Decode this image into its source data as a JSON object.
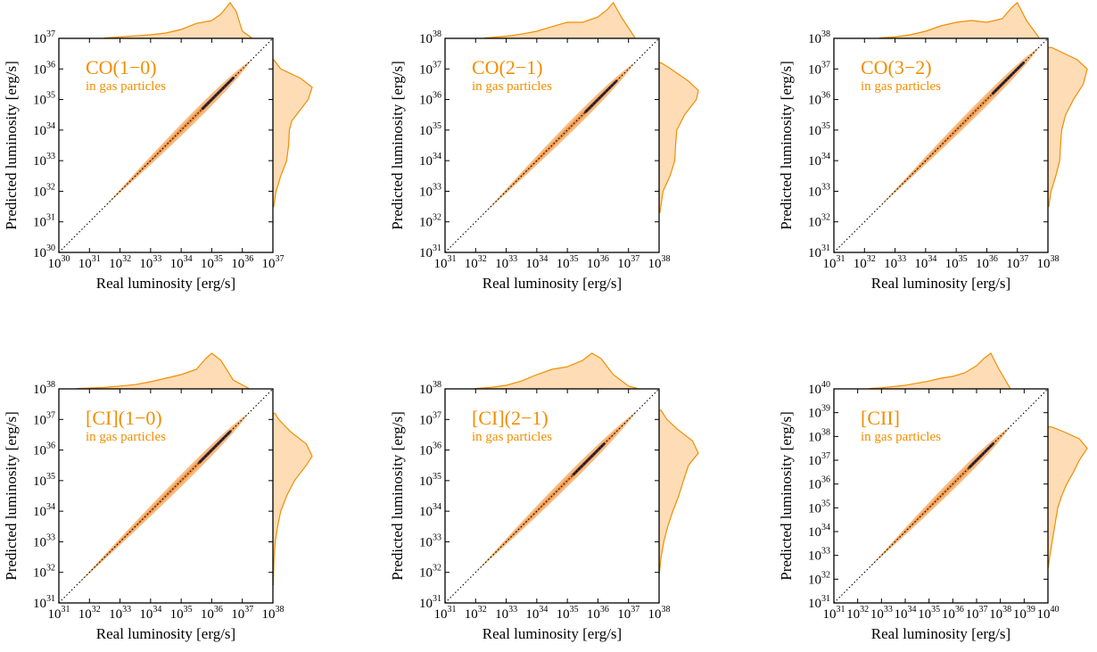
{
  "figure": {
    "accent_color": "#f28e00",
    "fill_color": "#fddcb6",
    "density_dark": "#1a1a3a",
    "diagonal_style": "black-dotted"
  },
  "chart_data": [
    {
      "type": "scatter",
      "title": "CO(1−0)",
      "subtitle": "in gas particles",
      "xlabel": "Real luminosity [erg/s]",
      "ylabel": "Predicted luminosity [erg/s]",
      "log_scale": true,
      "xlim_exp": [
        30,
        37
      ],
      "ylim_exp": [
        30,
        37
      ],
      "x_ticks": [
        {
          "base": "10",
          "exp": "30"
        },
        {
          "base": "10",
          "exp": "31"
        },
        {
          "base": "10",
          "exp": "32"
        },
        {
          "base": "10",
          "exp": "33"
        },
        {
          "base": "10",
          "exp": "34"
        },
        {
          "base": "10",
          "exp": "35"
        },
        {
          "base": "10",
          "exp": "36"
        },
        {
          "base": "10",
          "exp": "37"
        }
      ],
      "y_ticks": [
        {
          "base": "10",
          "exp": "30"
        },
        {
          "base": "10",
          "exp": "31"
        },
        {
          "base": "10",
          "exp": "32"
        },
        {
          "base": "10",
          "exp": "33"
        },
        {
          "base": "10",
          "exp": "34"
        },
        {
          "base": "10",
          "exp": "35"
        },
        {
          "base": "10",
          "exp": "36"
        },
        {
          "base": "10",
          "exp": "37"
        }
      ],
      "data_range_exp": [
        31.5,
        36.3
      ],
      "density_peak_exp": 35.3,
      "top_marginal": [
        [
          31.5,
          0.01
        ],
        [
          32.0,
          0.04
        ],
        [
          32.5,
          0.07
        ],
        [
          33.0,
          0.1
        ],
        [
          33.5,
          0.15
        ],
        [
          34.0,
          0.25
        ],
        [
          34.5,
          0.42
        ],
        [
          35.0,
          0.5
        ],
        [
          35.3,
          0.68
        ],
        [
          35.6,
          1.0
        ],
        [
          35.8,
          0.75
        ],
        [
          36.0,
          0.2
        ],
        [
          36.3,
          0.02
        ]
      ],
      "right_marginal": [
        [
          31.5,
          0.02
        ],
        [
          32.0,
          0.08
        ],
        [
          32.5,
          0.2
        ],
        [
          33.0,
          0.35
        ],
        [
          33.5,
          0.4
        ],
        [
          34.0,
          0.42
        ],
        [
          34.3,
          0.48
        ],
        [
          34.7,
          0.72
        ],
        [
          35.0,
          0.9
        ],
        [
          35.4,
          1.0
        ],
        [
          35.7,
          0.7
        ],
        [
          36.0,
          0.2
        ],
        [
          36.3,
          0.02
        ]
      ]
    },
    {
      "type": "scatter",
      "title": "CO(2−1)",
      "subtitle": "in gas particles",
      "xlabel": "Real luminosity [erg/s]",
      "ylabel": "Predicted luminosity [erg/s]",
      "log_scale": true,
      "xlim_exp": [
        31,
        38
      ],
      "ylim_exp": [
        31,
        38
      ],
      "x_ticks": [
        {
          "base": "10",
          "exp": "31"
        },
        {
          "base": "10",
          "exp": "32"
        },
        {
          "base": "10",
          "exp": "33"
        },
        {
          "base": "10",
          "exp": "34"
        },
        {
          "base": "10",
          "exp": "35"
        },
        {
          "base": "10",
          "exp": "36"
        },
        {
          "base": "10",
          "exp": "37"
        },
        {
          "base": "10",
          "exp": "38"
        }
      ],
      "y_ticks": [
        {
          "base": "10",
          "exp": "31"
        },
        {
          "base": "10",
          "exp": "32"
        },
        {
          "base": "10",
          "exp": "33"
        },
        {
          "base": "10",
          "exp": "34"
        },
        {
          "base": "10",
          "exp": "35"
        },
        {
          "base": "10",
          "exp": "36"
        },
        {
          "base": "10",
          "exp": "37"
        },
        {
          "base": "10",
          "exp": "38"
        }
      ],
      "data_range_exp": [
        32.3,
        37.2
      ],
      "density_peak_exp": 36.2,
      "top_marginal": [
        [
          32.3,
          0.01
        ],
        [
          33.0,
          0.06
        ],
        [
          33.5,
          0.12
        ],
        [
          34.0,
          0.2
        ],
        [
          34.5,
          0.33
        ],
        [
          35.0,
          0.45
        ],
        [
          35.5,
          0.45
        ],
        [
          36.0,
          0.6
        ],
        [
          36.3,
          0.8
        ],
        [
          36.5,
          1.0
        ],
        [
          36.8,
          0.55
        ],
        [
          37.2,
          0.03
        ]
      ],
      "right_marginal": [
        [
          32.3,
          0.02
        ],
        [
          33.0,
          0.1
        ],
        [
          33.5,
          0.28
        ],
        [
          34.0,
          0.4
        ],
        [
          34.5,
          0.42
        ],
        [
          35.0,
          0.45
        ],
        [
          35.5,
          0.65
        ],
        [
          36.0,
          0.95
        ],
        [
          36.3,
          1.0
        ],
        [
          36.6,
          0.75
        ],
        [
          37.0,
          0.3
        ],
        [
          37.2,
          0.05
        ]
      ]
    },
    {
      "type": "scatter",
      "title": "CO(3−2)",
      "subtitle": "in gas particles",
      "xlabel": "Real luminosity [erg/s]",
      "ylabel": "Predicted luminosity [erg/s]",
      "log_scale": true,
      "xlim_exp": [
        31,
        38
      ],
      "ylim_exp": [
        31,
        38
      ],
      "x_ticks": [
        {
          "base": "10",
          "exp": "31"
        },
        {
          "base": "10",
          "exp": "32"
        },
        {
          "base": "10",
          "exp": "33"
        },
        {
          "base": "10",
          "exp": "34"
        },
        {
          "base": "10",
          "exp": "35"
        },
        {
          "base": "10",
          "exp": "36"
        },
        {
          "base": "10",
          "exp": "37"
        },
        {
          "base": "10",
          "exp": "38"
        }
      ],
      "y_ticks": [
        {
          "base": "10",
          "exp": "31"
        },
        {
          "base": "10",
          "exp": "32"
        },
        {
          "base": "10",
          "exp": "33"
        },
        {
          "base": "10",
          "exp": "34"
        },
        {
          "base": "10",
          "exp": "35"
        },
        {
          "base": "10",
          "exp": "36"
        },
        {
          "base": "10",
          "exp": "37"
        },
        {
          "base": "10",
          "exp": "38"
        }
      ],
      "data_range_exp": [
        32.5,
        37.7
      ],
      "density_peak_exp": 36.8,
      "top_marginal": [
        [
          32.5,
          0.01
        ],
        [
          33.0,
          0.04
        ],
        [
          33.5,
          0.1
        ],
        [
          34.0,
          0.2
        ],
        [
          34.5,
          0.35
        ],
        [
          35.0,
          0.45
        ],
        [
          35.5,
          0.5
        ],
        [
          36.0,
          0.45
        ],
        [
          36.5,
          0.55
        ],
        [
          36.8,
          0.85
        ],
        [
          37.0,
          1.0
        ],
        [
          37.3,
          0.5
        ],
        [
          37.7,
          0.03
        ]
      ],
      "right_marginal": [
        [
          32.5,
          0.02
        ],
        [
          33.0,
          0.08
        ],
        [
          33.5,
          0.2
        ],
        [
          34.0,
          0.3
        ],
        [
          34.5,
          0.32
        ],
        [
          35.0,
          0.35
        ],
        [
          35.5,
          0.45
        ],
        [
          36.0,
          0.65
        ],
        [
          36.5,
          0.9
        ],
        [
          37.0,
          1.0
        ],
        [
          37.3,
          0.75
        ],
        [
          37.7,
          0.1
        ]
      ]
    },
    {
      "type": "scatter",
      "title": "[CI](1−0)",
      "subtitle": "in gas particles",
      "xlabel": "Real luminosity [erg/s]",
      "ylabel": "Predicted luminosity [erg/s]",
      "log_scale": true,
      "xlim_exp": [
        31,
        38
      ],
      "ylim_exp": [
        31,
        38
      ],
      "x_ticks": [
        {
          "base": "10",
          "exp": "31"
        },
        {
          "base": "10",
          "exp": "32"
        },
        {
          "base": "10",
          "exp": "33"
        },
        {
          "base": "10",
          "exp": "34"
        },
        {
          "base": "10",
          "exp": "35"
        },
        {
          "base": "10",
          "exp": "36"
        },
        {
          "base": "10",
          "exp": "37"
        },
        {
          "base": "10",
          "exp": "38"
        }
      ],
      "y_ticks": [
        {
          "base": "10",
          "exp": "31"
        },
        {
          "base": "10",
          "exp": "32"
        },
        {
          "base": "10",
          "exp": "33"
        },
        {
          "base": "10",
          "exp": "34"
        },
        {
          "base": "10",
          "exp": "35"
        },
        {
          "base": "10",
          "exp": "36"
        },
        {
          "base": "10",
          "exp": "37"
        },
        {
          "base": "10",
          "exp": "38"
        }
      ],
      "data_range_exp": [
        31.6,
        37.2
      ],
      "density_peak_exp": 36.2,
      "top_marginal": [
        [
          31.6,
          0.01
        ],
        [
          32.5,
          0.04
        ],
        [
          33.0,
          0.08
        ],
        [
          33.5,
          0.12
        ],
        [
          34.0,
          0.2
        ],
        [
          34.5,
          0.3
        ],
        [
          35.0,
          0.4
        ],
        [
          35.5,
          0.55
        ],
        [
          35.8,
          0.85
        ],
        [
          36.0,
          1.0
        ],
        [
          36.3,
          0.8
        ],
        [
          36.7,
          0.25
        ],
        [
          37.2,
          0.02
        ]
      ],
      "right_marginal": [
        [
          31.6,
          0.01
        ],
        [
          32.5,
          0.03
        ],
        [
          33.0,
          0.06
        ],
        [
          33.5,
          0.12
        ],
        [
          34.0,
          0.2
        ],
        [
          34.5,
          0.35
        ],
        [
          35.0,
          0.55
        ],
        [
          35.5,
          0.85
        ],
        [
          35.8,
          1.0
        ],
        [
          36.2,
          0.85
        ],
        [
          36.6,
          0.45
        ],
        [
          37.0,
          0.15
        ],
        [
          37.2,
          0.05
        ]
      ]
    },
    {
      "type": "scatter",
      "title": "[CI](2−1)",
      "subtitle": "in gas particles",
      "xlabel": "Real luminosity [erg/s]",
      "ylabel": "Predicted luminosity [erg/s]",
      "log_scale": true,
      "xlim_exp": [
        31,
        38
      ],
      "ylim_exp": [
        31,
        38
      ],
      "x_ticks": [
        {
          "base": "10",
          "exp": "31"
        },
        {
          "base": "10",
          "exp": "32"
        },
        {
          "base": "10",
          "exp": "33"
        },
        {
          "base": "10",
          "exp": "34"
        },
        {
          "base": "10",
          "exp": "35"
        },
        {
          "base": "10",
          "exp": "36"
        },
        {
          "base": "10",
          "exp": "37"
        },
        {
          "base": "10",
          "exp": "38"
        }
      ],
      "y_ticks": [
        {
          "base": "10",
          "exp": "31"
        },
        {
          "base": "10",
          "exp": "32"
        },
        {
          "base": "10",
          "exp": "33"
        },
        {
          "base": "10",
          "exp": "34"
        },
        {
          "base": "10",
          "exp": "35"
        },
        {
          "base": "10",
          "exp": "36"
        },
        {
          "base": "10",
          "exp": "37"
        },
        {
          "base": "10",
          "exp": "38"
        }
      ],
      "data_range_exp": [
        32.0,
        37.3
      ],
      "density_peak_exp": 35.8,
      "top_marginal": [
        [
          32.0,
          0.01
        ],
        [
          32.5,
          0.04
        ],
        [
          33.0,
          0.1
        ],
        [
          33.5,
          0.22
        ],
        [
          34.0,
          0.4
        ],
        [
          34.5,
          0.55
        ],
        [
          35.0,
          0.62
        ],
        [
          35.5,
          0.8
        ],
        [
          35.8,
          1.0
        ],
        [
          36.1,
          0.85
        ],
        [
          36.5,
          0.4
        ],
        [
          37.0,
          0.08
        ],
        [
          37.3,
          0.01
        ]
      ],
      "right_marginal": [
        [
          32.0,
          0.01
        ],
        [
          32.5,
          0.05
        ],
        [
          33.0,
          0.12
        ],
        [
          33.5,
          0.22
        ],
        [
          34.0,
          0.35
        ],
        [
          34.5,
          0.5
        ],
        [
          35.0,
          0.62
        ],
        [
          35.5,
          0.75
        ],
        [
          35.9,
          1.0
        ],
        [
          36.3,
          0.85
        ],
        [
          36.7,
          0.45
        ],
        [
          37.0,
          0.2
        ],
        [
          37.3,
          0.05
        ]
      ]
    },
    {
      "type": "scatter",
      "title": "[CII]",
      "subtitle": "in gas particles",
      "xlabel": "Real luminosity [erg/s]",
      "ylabel": "Predicted luminosity [erg/s]",
      "log_scale": true,
      "xlim_exp": [
        31,
        40
      ],
      "ylim_exp": [
        31,
        40
      ],
      "x_ticks": [
        {
          "base": "10",
          "exp": "31"
        },
        {
          "base": "10",
          "exp": "32"
        },
        {
          "base": "10",
          "exp": "33"
        },
        {
          "base": "10",
          "exp": "34"
        },
        {
          "base": "10",
          "exp": "35"
        },
        {
          "base": "10",
          "exp": "36"
        },
        {
          "base": "10",
          "exp": "37"
        },
        {
          "base": "10",
          "exp": "38"
        },
        {
          "base": "10",
          "exp": "39"
        },
        {
          "base": "10",
          "exp": "40"
        }
      ],
      "y_ticks": [
        {
          "base": "10",
          "exp": "31"
        },
        {
          "base": "10",
          "exp": "32"
        },
        {
          "base": "10",
          "exp": "33"
        },
        {
          "base": "10",
          "exp": "34"
        },
        {
          "base": "10",
          "exp": "35"
        },
        {
          "base": "10",
          "exp": "36"
        },
        {
          "base": "10",
          "exp": "37"
        },
        {
          "base": "10",
          "exp": "38"
        },
        {
          "base": "10",
          "exp": "39"
        },
        {
          "base": "10",
          "exp": "40"
        }
      ],
      "data_range_exp": [
        32.5,
        38.4
      ],
      "density_peak_exp": 37.3,
      "top_marginal": [
        [
          32.5,
          0.01
        ],
        [
          33.0,
          0.03
        ],
        [
          34.0,
          0.1
        ],
        [
          35.0,
          0.22
        ],
        [
          35.5,
          0.3
        ],
        [
          36.0,
          0.35
        ],
        [
          36.5,
          0.45
        ],
        [
          37.0,
          0.65
        ],
        [
          37.3,
          0.85
        ],
        [
          37.6,
          1.0
        ],
        [
          37.9,
          0.6
        ],
        [
          38.4,
          0.03
        ]
      ],
      "right_marginal": [
        [
          32.5,
          0.01
        ],
        [
          33.0,
          0.05
        ],
        [
          34.0,
          0.15
        ],
        [
          35.0,
          0.25
        ],
        [
          35.5,
          0.35
        ],
        [
          36.0,
          0.48
        ],
        [
          36.5,
          0.65
        ],
        [
          37.0,
          0.8
        ],
        [
          37.5,
          1.0
        ],
        [
          37.9,
          0.8
        ],
        [
          38.2,
          0.4
        ],
        [
          38.4,
          0.1
        ]
      ]
    }
  ]
}
